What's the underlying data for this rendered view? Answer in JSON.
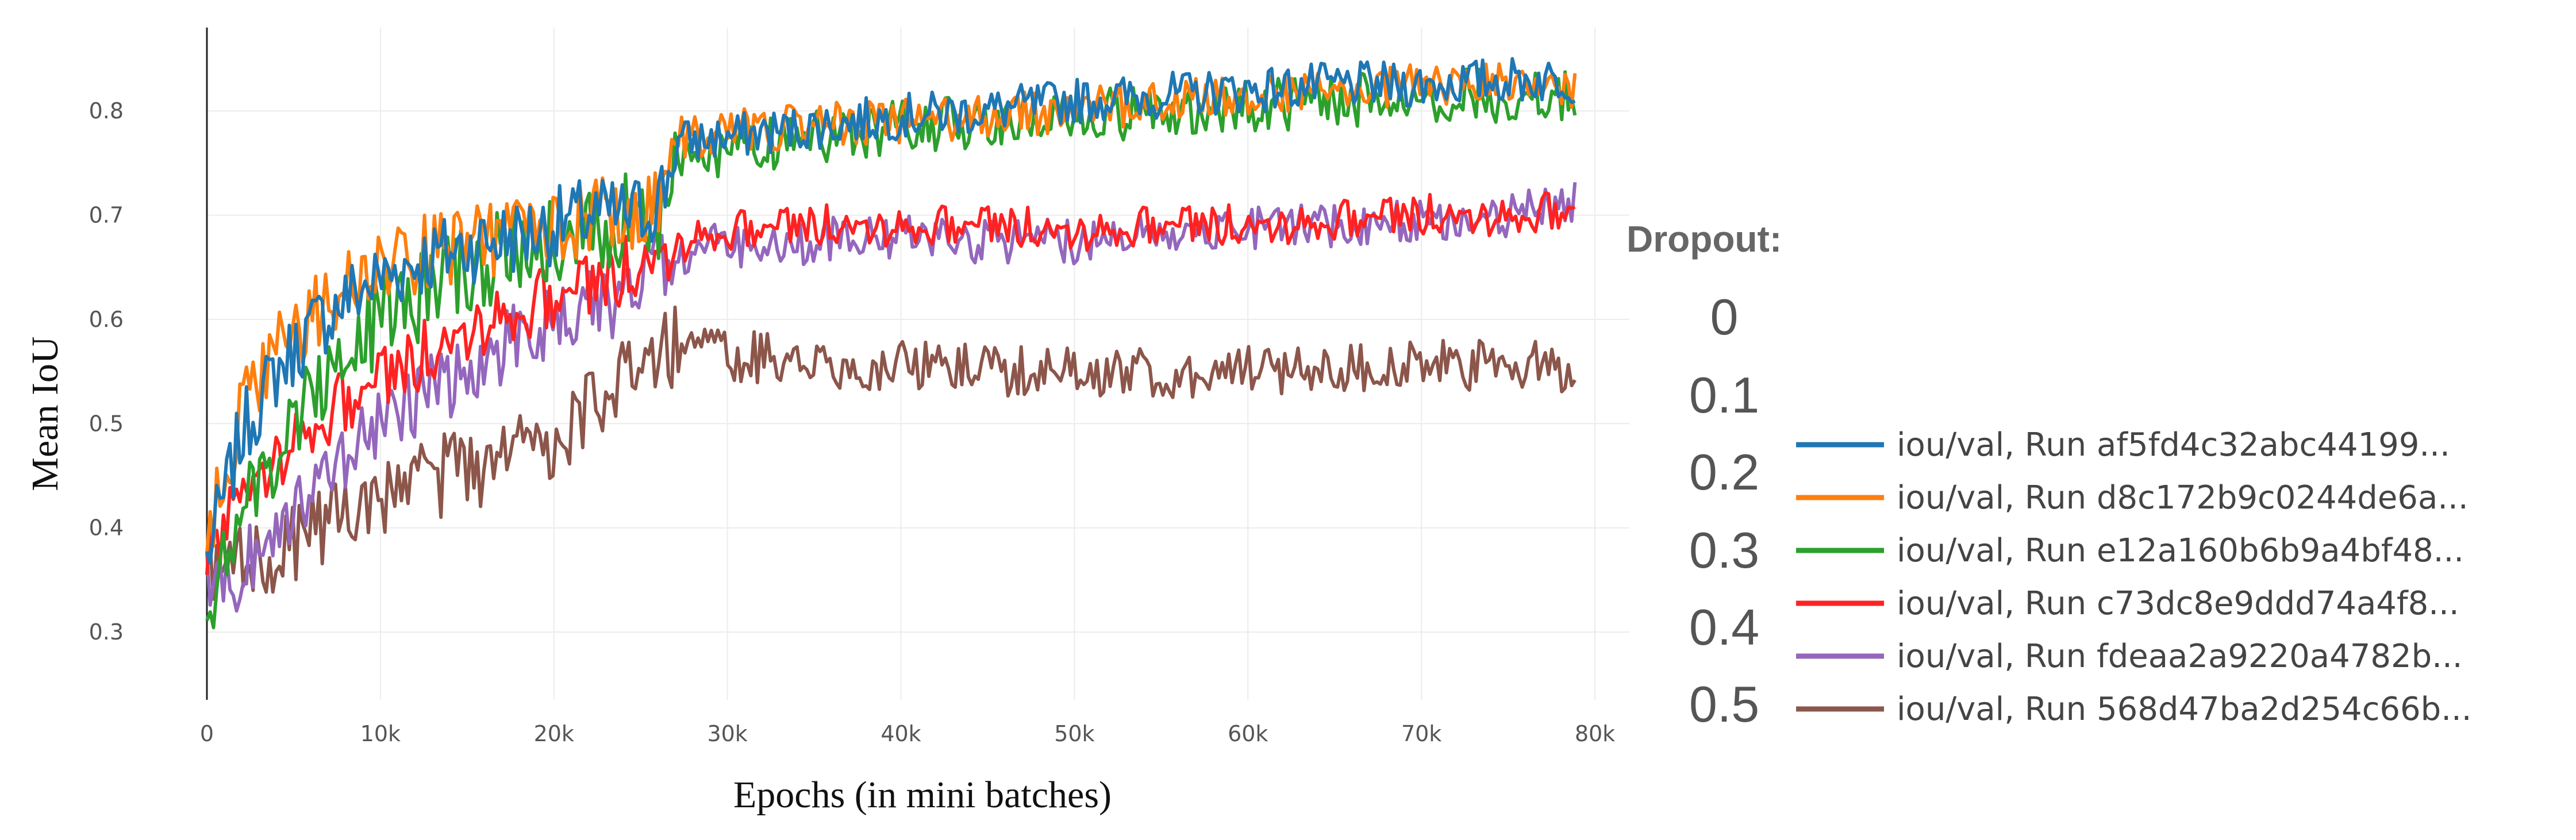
{
  "chart_data": {
    "type": "line",
    "title": "",
    "xlabel": "Epochs (in mini batches)",
    "ylabel": "Mean IoU",
    "xlim": [
      0,
      80000
    ],
    "ylim": [
      0.235,
      0.88
    ],
    "grid": true,
    "x_ticks": [
      0,
      10000,
      20000,
      30000,
      40000,
      50000,
      60000,
      70000,
      80000
    ],
    "x_tick_labels": [
      "0",
      "10k",
      "20k",
      "30k",
      "40k",
      "50k",
      "60k",
      "70k",
      "80k"
    ],
    "y_ticks": [
      0.3,
      0.4,
      0.5,
      0.6,
      0.7,
      0.8
    ],
    "y_tick_labels": [
      "0.3",
      "0.4",
      "0.5",
      "0.6",
      "0.7",
      "0.8"
    ],
    "legend_title": "Dropout:",
    "legend_placement": "right",
    "series": [
      {
        "name": "iou/val, Run af5fd4c32abc44199...",
        "dropout": "0",
        "color": "#1f77b4",
        "x": [
          0,
          1000,
          2000,
          4000,
          6000,
          8000,
          10000,
          12000,
          14000,
          16000,
          18000,
          20000,
          22000,
          24000,
          25500,
          26500,
          27000,
          30000,
          35000,
          40000,
          45000,
          50000,
          55000,
          60000,
          65000,
          70000,
          75000,
          79000
        ],
        "values": [
          0.37,
          0.43,
          0.49,
          0.55,
          0.59,
          0.62,
          0.64,
          0.655,
          0.665,
          0.675,
          0.68,
          0.69,
          0.7,
          0.7,
          0.705,
          0.73,
          0.77,
          0.775,
          0.785,
          0.795,
          0.8,
          0.81,
          0.815,
          0.82,
          0.825,
          0.825,
          0.83,
          0.83
        ],
        "noise": 0.022
      },
      {
        "name": "iou/val, Run d8c172b9c0244de6a...",
        "dropout": "0.1",
        "color": "#ff7f0e",
        "x": [
          0,
          1000,
          2000,
          4000,
          6000,
          8000,
          10000,
          12000,
          14000,
          16000,
          18000,
          20000,
          22000,
          24000,
          25500,
          26500,
          27000,
          30000,
          35000,
          40000,
          45000,
          50000,
          55000,
          60000,
          65000,
          70000,
          75000,
          79000
        ],
        "values": [
          0.38,
          0.45,
          0.51,
          0.57,
          0.6,
          0.63,
          0.65,
          0.66,
          0.67,
          0.675,
          0.685,
          0.69,
          0.7,
          0.7,
          0.705,
          0.73,
          0.775,
          0.78,
          0.785,
          0.79,
          0.795,
          0.8,
          0.81,
          0.815,
          0.82,
          0.825,
          0.825,
          0.825
        ],
        "noise": 0.022
      },
      {
        "name": "iou/val, Run e12a160b6b9a4bf48...",
        "dropout": "0.2",
        "color": "#2ca02c",
        "x": [
          0,
          1000,
          2000,
          4000,
          6000,
          8000,
          10000,
          12000,
          14000,
          16000,
          18000,
          20000,
          22000,
          24000,
          25500,
          26500,
          27000,
          30000,
          35000,
          40000,
          45000,
          50000,
          55000,
          60000,
          65000,
          70000,
          75000,
          79000
        ],
        "values": [
          0.33,
          0.37,
          0.41,
          0.47,
          0.53,
          0.57,
          0.6,
          0.62,
          0.64,
          0.655,
          0.67,
          0.68,
          0.69,
          0.695,
          0.7,
          0.7,
          0.755,
          0.76,
          0.775,
          0.785,
          0.79,
          0.795,
          0.8,
          0.805,
          0.81,
          0.815,
          0.815,
          0.815
        ],
        "noise": 0.026
      },
      {
        "name": "iou/val, Run c73dc8e9ddd74a4f8...",
        "dropout": "0.3",
        "color": "#ff2222",
        "x": [
          0,
          1000,
          2000,
          4000,
          6000,
          8000,
          10000,
          12000,
          14000,
          16000,
          18000,
          20000,
          22000,
          24000,
          26000,
          28000,
          30000,
          35000,
          40000,
          45000,
          50000,
          55000,
          60000,
          65000,
          70000,
          75000,
          79000
        ],
        "values": [
          0.38,
          0.4,
          0.43,
          0.47,
          0.5,
          0.52,
          0.54,
          0.56,
          0.58,
          0.6,
          0.61,
          0.62,
          0.63,
          0.645,
          0.66,
          0.68,
          0.685,
          0.69,
          0.69,
          0.69,
          0.685,
          0.69,
          0.69,
          0.695,
          0.7,
          0.7,
          0.705
        ],
        "noise": 0.02
      },
      {
        "name": "iou/val, Run fdeaa2a9220a4782b...",
        "dropout": "0.4",
        "color": "#9467bd",
        "x": [
          0,
          1000,
          2000,
          4000,
          6000,
          8000,
          10000,
          12000,
          14000,
          16000,
          18000,
          20000,
          22000,
          24000,
          26000,
          28000,
          30000,
          35000,
          40000,
          45000,
          50000,
          55000,
          60000,
          65000,
          70000,
          75000,
          79000
        ],
        "values": [
          0.34,
          0.35,
          0.36,
          0.4,
          0.44,
          0.47,
          0.5,
          0.52,
          0.54,
          0.56,
          0.58,
          0.6,
          0.61,
          0.62,
          0.65,
          0.67,
          0.67,
          0.675,
          0.68,
          0.675,
          0.675,
          0.685,
          0.69,
          0.69,
          0.695,
          0.7,
          0.71
        ],
        "noise": 0.022
      },
      {
        "name": "iou/val, Run 568d47ba2d254c66b...",
        "dropout": "0.5",
        "color": "#8c564b",
        "x": [
          0,
          1000,
          2000,
          4000,
          6000,
          8000,
          10000,
          12000,
          14000,
          16000,
          18000,
          20000,
          22000,
          24000,
          25000,
          26000,
          28000,
          30000,
          35000,
          40000,
          45000,
          50000,
          55000,
          60000,
          65000,
          70000,
          75000,
          79000
        ],
        "values": [
          0.36,
          0.36,
          0.37,
          0.38,
          0.39,
          0.41,
          0.42,
          0.44,
          0.45,
          0.46,
          0.47,
          0.49,
          0.51,
          0.54,
          0.56,
          0.58,
          0.57,
          0.565,
          0.56,
          0.555,
          0.55,
          0.55,
          0.55,
          0.55,
          0.555,
          0.555,
          0.555,
          0.555
        ],
        "noise": 0.025
      }
    ]
  }
}
